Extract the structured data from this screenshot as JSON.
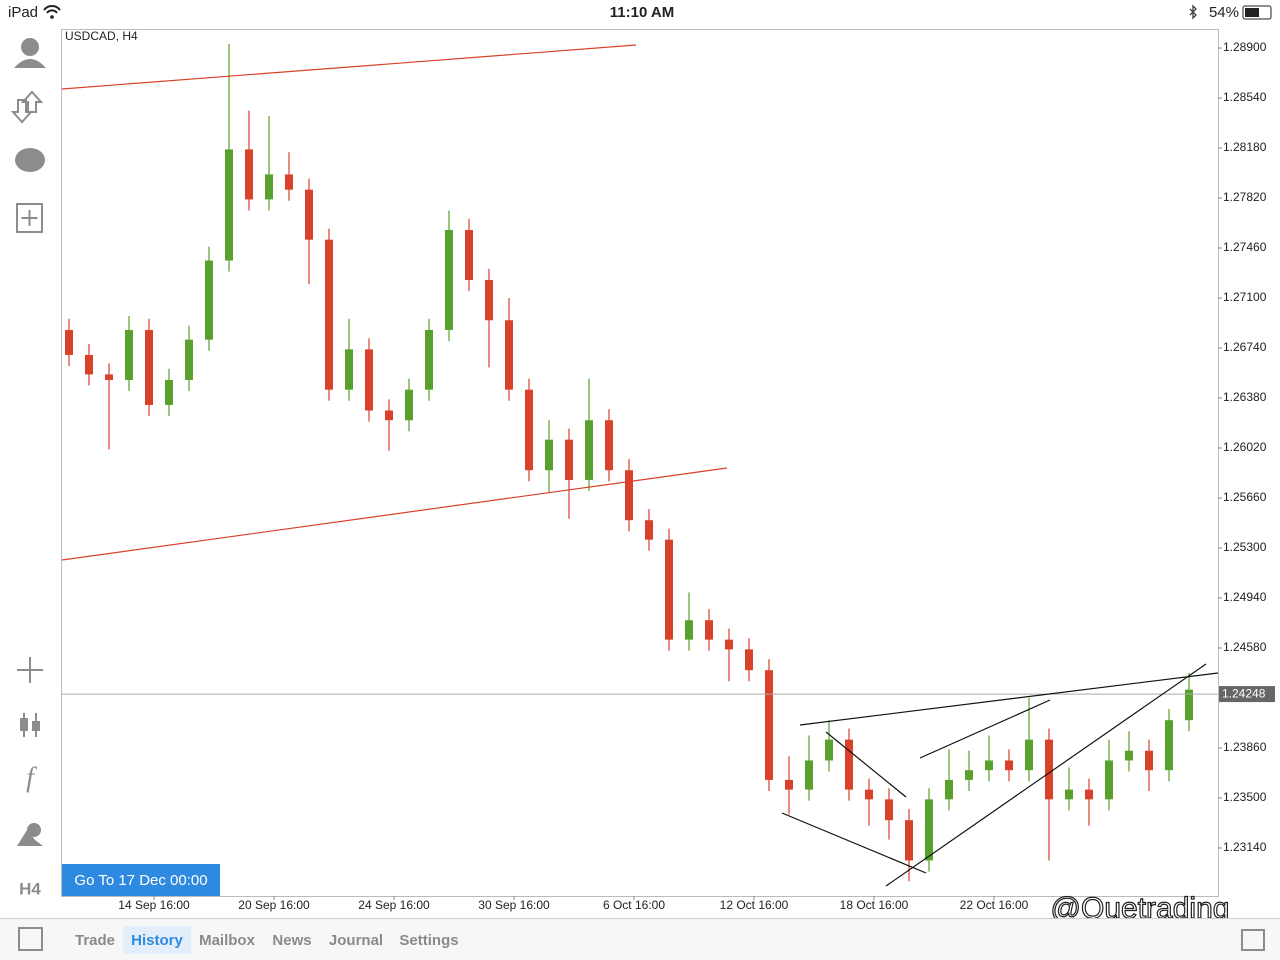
{
  "status_bar": {
    "device": "iPad",
    "time": "11:10 AM",
    "battery": "54%"
  },
  "sidebar_timeframe": "H4",
  "goto_button": "Go To 17 Dec 00:00",
  "watermark": "@Quetrading",
  "tabs": [
    "Trade",
    "History",
    "Mailbox",
    "News",
    "Journal",
    "Settings"
  ],
  "active_tab": 1,
  "chart_data": {
    "type": "candlestick",
    "title": "USDCAD, H4",
    "up_color": "#5aa02c",
    "down_color": "#d9412a",
    "x": [
      1,
      5,
      9,
      13,
      17,
      21,
      25,
      29,
      33,
      37,
      41,
      45,
      49,
      53,
      57,
      61,
      65,
      69,
      73,
      77,
      81,
      85,
      89,
      93,
      97,
      101,
      105,
      109,
      113,
      117,
      121,
      125,
      129,
      133,
      137,
      141,
      145,
      149,
      153,
      157,
      161,
      165,
      169,
      173,
      177,
      181,
      185,
      189,
      193,
      197,
      201,
      205,
      209,
      213,
      217,
      221,
      225
    ],
    "open": [
      1.2687,
      1.2669,
      1.2655,
      1.2651,
      1.2687,
      1.2633,
      1.2651,
      1.268,
      1.2737,
      1.2817,
      1.2781,
      1.2799,
      1.2788,
      1.2752,
      1.2644,
      1.2673,
      1.2629,
      1.2622,
      1.2644,
      1.2687,
      1.2759,
      1.2723,
      1.2694,
      1.2644,
      1.2586,
      1.2608,
      1.2579,
      1.2622,
      1.2586,
      1.255,
      1.2536,
      1.2464,
      1.2478,
      1.2464,
      1.2457,
      1.2442,
      1.2363,
      1.2356,
      1.2377,
      1.2392,
      1.2356,
      1.2349,
      1.2334,
      1.2305,
      1.2349,
      1.2363,
      1.237,
      1.2377,
      1.237,
      1.2392,
      1.2349,
      1.2356,
      1.2349,
      1.2377,
      1.2384,
      1.237,
      1.2406
    ],
    "high": [
      1.2695,
      1.2677,
      1.2663,
      1.2697,
      1.2695,
      1.2659,
      1.269,
      1.2747,
      1.2893,
      1.2845,
      1.2841,
      1.2815,
      1.2796,
      1.276,
      1.2695,
      1.2681,
      1.2637,
      1.2652,
      1.2695,
      1.2773,
      1.2767,
      1.2731,
      1.271,
      1.2652,
      1.2622,
      1.2616,
      1.2652,
      1.263,
      1.2594,
      1.2558,
      1.2544,
      1.2498,
      1.2486,
      1.2472,
      1.2465,
      1.245,
      1.238,
      1.2395,
      1.2406,
      1.24,
      1.2364,
      1.2357,
      1.2342,
      1.2357,
      1.2385,
      1.2384,
      1.2395,
      1.2385,
      1.2422,
      1.24,
      1.2372,
      1.2364,
      1.2392,
      1.2398,
      1.2392,
      1.2414,
      1.244
    ],
    "low": [
      1.2661,
      1.2647,
      1.2601,
      1.2643,
      1.2625,
      1.2625,
      1.2643,
      1.2672,
      1.2729,
      1.2773,
      1.2773,
      1.278,
      1.272,
      1.2636,
      1.2636,
      1.2621,
      1.26,
      1.2614,
      1.2636,
      1.2679,
      1.2715,
      1.266,
      1.2636,
      1.2578,
      1.257,
      1.2551,
      1.2571,
      1.2578,
      1.2542,
      1.2528,
      1.2456,
      1.2456,
      1.2456,
      1.2434,
      1.2434,
      1.2355,
      1.2338,
      1.2348,
      1.2369,
      1.2348,
      1.233,
      1.232,
      1.229,
      1.2297,
      1.2341,
      1.2355,
      1.2362,
      1.2362,
      1.2362,
      1.2305,
      1.2341,
      1.233,
      1.2341,
      1.2369,
      1.2355,
      1.2362,
      1.2398
    ],
    "close": [
      1.2669,
      1.2655,
      1.2651,
      1.2687,
      1.2633,
      1.2651,
      1.268,
      1.2737,
      1.2817,
      1.2781,
      1.2799,
      1.2788,
      1.2752,
      1.2644,
      1.2673,
      1.2629,
      1.2622,
      1.2644,
      1.2687,
      1.2759,
      1.2723,
      1.2694,
      1.2644,
      1.2586,
      1.2608,
      1.2579,
      1.2622,
      1.2586,
      1.255,
      1.2536,
      1.2464,
      1.2478,
      1.2464,
      1.2457,
      1.2442,
      1.2363,
      1.2356,
      1.2377,
      1.2392,
      1.2356,
      1.2349,
      1.2334,
      1.2305,
      1.2349,
      1.2363,
      1.237,
      1.2377,
      1.237,
      1.2392,
      1.2349,
      1.2356,
      1.2349,
      1.2377,
      1.2384,
      1.237,
      1.2406,
      1.2428
    ],
    "current_price": {
      "value": 1.24248,
      "label": "1.24248"
    },
    "xlim": [
      -0.4,
      230.8
    ],
    "xticks": [
      {
        "value": 18,
        "label": "14 Sep 16:00"
      },
      {
        "value": 42,
        "label": "20 Sep 16:00"
      },
      {
        "value": 66,
        "label": "24 Sep 16:00"
      },
      {
        "value": 90,
        "label": "30 Sep 16:00"
      },
      {
        "value": 114,
        "label": "6 Oct 16:00"
      },
      {
        "value": 138,
        "label": "12 Oct 16:00"
      },
      {
        "value": 162,
        "label": "18 Oct 16:00"
      },
      {
        "value": 186,
        "label": "22 Oct 16:00"
      }
    ],
    "ylim": [
      1.22794,
      1.2903
    ],
    "yticks": [
      {
        "value": 1.289,
        "label": "1.28900"
      },
      {
        "value": 1.2854,
        "label": "1.28540"
      },
      {
        "value": 1.2818,
        "label": "1.28180"
      },
      {
        "value": 1.2782,
        "label": "1.27820"
      },
      {
        "value": 1.2746,
        "label": "1.27460"
      },
      {
        "value": 1.271,
        "label": "1.27100"
      },
      {
        "value": 1.2674,
        "label": "1.26740"
      },
      {
        "value": 1.2638,
        "label": "1.26380"
      },
      {
        "value": 1.2602,
        "label": "1.26020"
      },
      {
        "value": 1.2566,
        "label": "1.25660"
      },
      {
        "value": 1.253,
        "label": "1.25300"
      },
      {
        "value": 1.2494,
        "label": "1.24940"
      },
      {
        "value": 1.2458,
        "label": "1.24580"
      },
      {
        "value": 1.2386,
        "label": "1.23860"
      },
      {
        "value": 1.235,
        "label": "1.23500"
      },
      {
        "value": 1.2314,
        "label": "1.23140"
      }
    ]
  }
}
